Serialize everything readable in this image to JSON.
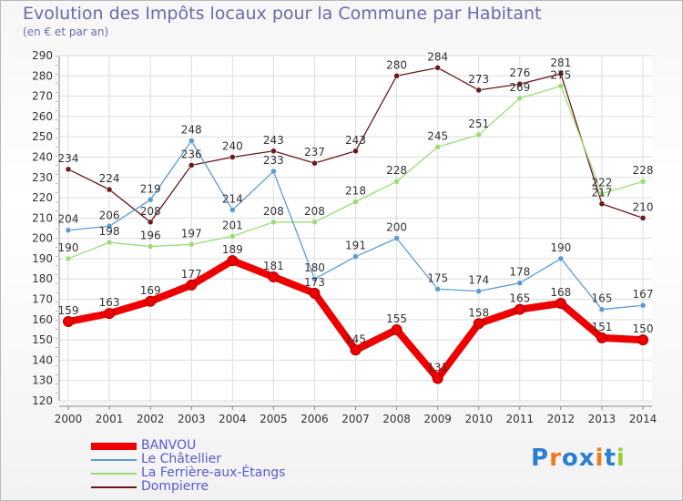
{
  "chart_data": {
    "type": "line",
    "title": "Evolution des Impôts locaux pour la Commune par Habitant",
    "subtitle": "(en € et par an)",
    "x": [
      "2000",
      "2001",
      "2002",
      "2003",
      "2004",
      "2005",
      "2006",
      "2007",
      "2008",
      "2009",
      "2010",
      "2011",
      "2012",
      "2013",
      "2014"
    ],
    "ylim": [
      120,
      290
    ],
    "yticks": [
      120,
      130,
      140,
      150,
      160,
      170,
      180,
      190,
      200,
      210,
      220,
      230,
      240,
      250,
      260,
      270,
      280,
      290
    ],
    "series": [
      {
        "name": "BANVOU",
        "color": "#ee0000",
        "width": 8,
        "values": [
          159,
          163,
          169,
          177,
          189,
          181,
          173,
          145,
          155,
          131,
          158,
          165,
          168,
          151,
          150
        ]
      },
      {
        "name": "Le Châtellier",
        "color": "#5a9bd3",
        "width": 1.3,
        "values": [
          204,
          206,
          219,
          248,
          214,
          233,
          180,
          191,
          200,
          175,
          174,
          178,
          190,
          165,
          167
        ]
      },
      {
        "name": "La Ferrière-aux-Étangs",
        "color": "#99dd77",
        "width": 1.3,
        "values": [
          190,
          198,
          196,
          197,
          201,
          208,
          208,
          218,
          228,
          245,
          251,
          269,
          275,
          222,
          228
        ]
      },
      {
        "name": "Dompierre",
        "color": "#6b1a1a",
        "width": 1.3,
        "values": [
          234,
          224,
          208,
          236,
          240,
          243,
          237,
          243,
          280,
          284,
          273,
          276,
          281,
          217,
          210
        ]
      }
    ]
  },
  "legend_items": [
    "BANVOU",
    "Le Châtellier",
    "La Ferrière-aux-Étangs",
    "Dompierre"
  ],
  "logo": {
    "letters": [
      "P",
      "r",
      "o",
      "x",
      "i",
      "t",
      "i"
    ],
    "colors": [
      "#2a7fd0",
      "#f07a1a",
      "#2a7fd0",
      "#2a7fd0",
      "#f07a1a",
      "#2a7fd0",
      "#9acd32"
    ]
  }
}
